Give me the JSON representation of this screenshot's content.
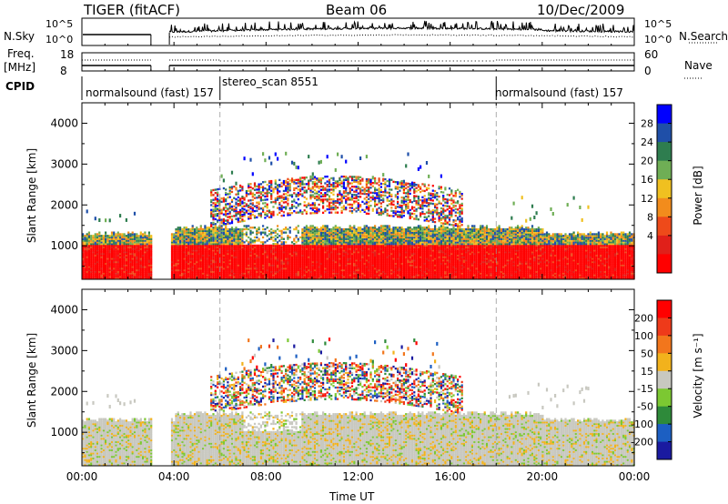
{
  "header": {
    "radar": "TIGER (fitACF)",
    "beam": "Beam 06",
    "date": "10/Dec/2009"
  },
  "top_panels": {
    "nsky_label": "N.Sky",
    "left_ticks_power": [
      "10^5",
      "10^0"
    ],
    "right_ticks_power": [
      "10^5",
      "10^0"
    ],
    "nsearch_label": "N.Search",
    "freq_label": "Freq.",
    "freq_unit": "[MHz]",
    "freq_ticks": [
      "18",
      "8"
    ],
    "nave_ticks": [
      "60",
      "0"
    ],
    "nave_label": "Nave",
    "cpid_label": "CPID",
    "cpid_segments": [
      {
        "name": "normalsound (fast) 157",
        "start_h": 0,
        "end_h": 6
      },
      {
        "name": "stereo_scan 8551",
        "start_h": 6,
        "end_h": 18
      },
      {
        "name": "normalsound (fast) 157",
        "start_h": 18,
        "end_h": 24
      }
    ]
  },
  "colorbars": {
    "power": {
      "label": "Power [dB]",
      "ticks": [
        "28",
        "24",
        "20",
        "16",
        "12",
        "8",
        "4"
      ],
      "colors": [
        "#0000ff",
        "#1f4fa8",
        "#2e7d4f",
        "#6fae55",
        "#f0c020",
        "#f28c1c",
        "#ee4a1a",
        "#e0201a",
        "#ff0000"
      ]
    },
    "velocity": {
      "label": "Velocity [m s⁻¹]",
      "ticks": [
        "200",
        "100",
        "50",
        "15",
        "-15",
        "-50",
        "-100",
        "-200"
      ],
      "colors": [
        "#1a1aa0",
        "#1c5fc2",
        "#2e8a3a",
        "#7cc832",
        "#c8c8c0",
        "#f2b21c",
        "#f2761c",
        "#ee3a1a",
        "#ff0000"
      ]
    }
  },
  "chart_data": {
    "type": "heatmap",
    "xlabel": "Time UT",
    "x_ticks": [
      "00:00",
      "04:00",
      "08:00",
      "12:00",
      "16:00",
      "20:00",
      "00:00"
    ],
    "xlim_hours": [
      0,
      24
    ],
    "ylabel": "Slant Range [km]",
    "y_ticks": [
      "1000",
      "2000",
      "3000",
      "4000"
    ],
    "ylim_km": [
      180,
      4500
    ],
    "data_gap_hours": [
      3.0,
      3.8
    ],
    "cpid_boundaries_hours": [
      6.0,
      18.0
    ],
    "panels": [
      {
        "quantity": "Power",
        "unit": "dB",
        "range": [
          0,
          30
        ]
      },
      {
        "quantity": "Velocity",
        "unit": "m s^-1",
        "range": [
          -200,
          200
        ]
      }
    ]
  }
}
